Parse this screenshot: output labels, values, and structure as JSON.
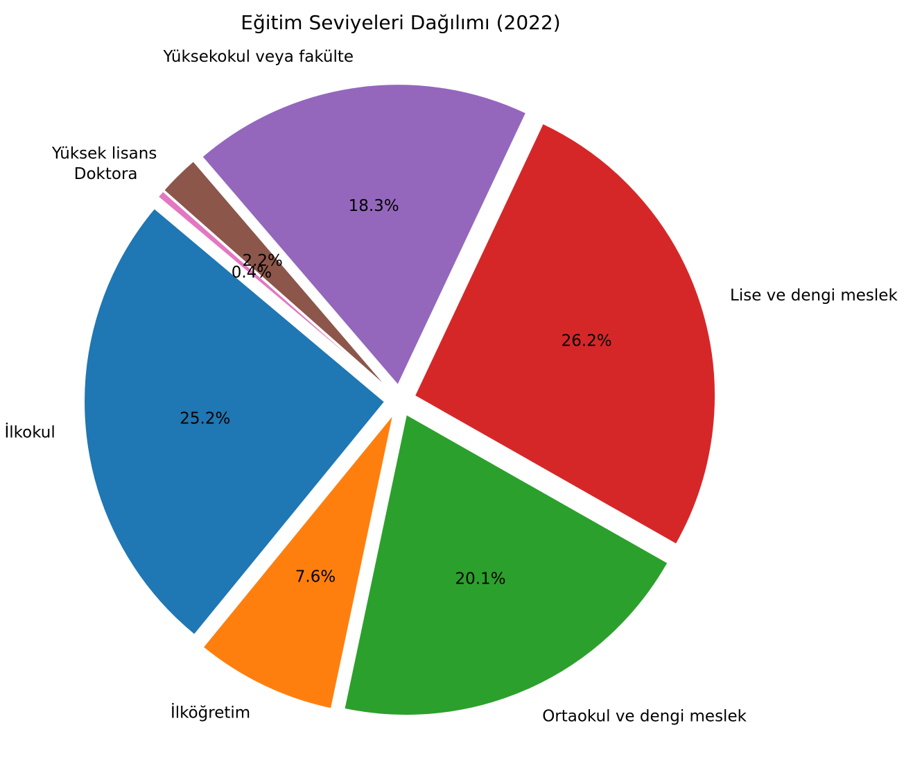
{
  "chart_data": {
    "type": "pie",
    "title": "Eğitim Seviyeleri Dağılımı (2022)",
    "slices": [
      {
        "label": "İlkokul",
        "value": 25.2,
        "pct_label": "25.2%",
        "color": "#1f77b4"
      },
      {
        "label": "İlköğretim",
        "value": 7.6,
        "pct_label": "7.6%",
        "color": "#ff7f0e"
      },
      {
        "label": "Ortaokul ve dengi meslek",
        "value": 20.1,
        "pct_label": "20.1%",
        "color": "#2ca02c"
      },
      {
        "label": "Lise ve dengi meslek",
        "value": 26.2,
        "pct_label": "26.2%",
        "color": "#d62728"
      },
      {
        "label": "Yüksekokul veya fakülte",
        "value": 18.3,
        "pct_label": "18.3%",
        "color": "#9467bd"
      },
      {
        "label": "Yüksek lisans",
        "value": 2.2,
        "pct_label": "2.2%",
        "color": "#8c564b"
      },
      {
        "label": "Doktora",
        "value": 0.4,
        "pct_label": "0.4%",
        "color": "#e377c2"
      }
    ],
    "start_angle_deg": 140,
    "direction": "counterclockwise",
    "exploded": true,
    "legend": "none"
  }
}
